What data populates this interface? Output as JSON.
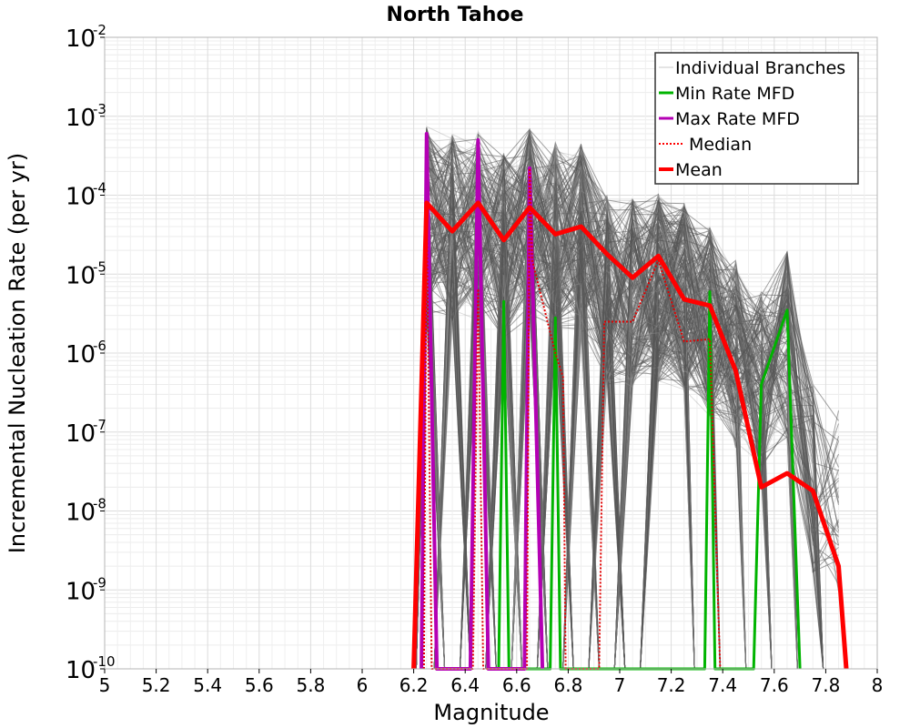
{
  "chart_data": {
    "type": "line",
    "title": "North Tahoe",
    "xlabel": "Magnitude",
    "ylabel": "Incremental Nucleation Rate (per yr)",
    "xlim": [
      5,
      8
    ],
    "ylim": [
      1e-10,
      0.01
    ],
    "yscale": "log",
    "grid": true,
    "legend_position": "top-right",
    "x_ticks": [
      "5",
      "5.2",
      "5.4",
      "5.6",
      "5.8",
      "6",
      "6.2",
      "6.4",
      "6.6",
      "6.8",
      "7",
      "7.2",
      "7.4",
      "7.6",
      "7.8",
      "8"
    ],
    "y_ticks": [
      {
        "base": "10",
        "exp": "-10"
      },
      {
        "base": "10",
        "exp": "-9"
      },
      {
        "base": "10",
        "exp": "-8"
      },
      {
        "base": "10",
        "exp": "-7"
      },
      {
        "base": "10",
        "exp": "-6"
      },
      {
        "base": "10",
        "exp": "-5"
      },
      {
        "base": "10",
        "exp": "-4"
      },
      {
        "base": "10",
        "exp": "-3"
      },
      {
        "base": "10",
        "exp": "-2"
      }
    ],
    "legend": [
      {
        "name": "Individual Branches",
        "color": "#c8c8c8",
        "style": "solid-thin"
      },
      {
        "name": "Min Rate MFD",
        "color": "#00b400",
        "style": "solid"
      },
      {
        "name": "Max Rate MFD",
        "color": "#b400b4",
        "style": "solid"
      },
      {
        "name": "Median",
        "color": "#ff0000",
        "style": "dotted"
      },
      {
        "name": "Mean",
        "color": "#ff0000",
        "style": "solid-thick"
      }
    ],
    "branch_envelope": {
      "x": [
        6.25,
        6.35,
        6.45,
        6.55,
        6.65,
        6.75,
        6.85,
        6.95,
        7.05,
        7.15,
        7.25,
        7.35,
        7.45,
        7.55,
        7.65,
        7.75,
        7.85
      ],
      "max": [
        0.00075,
        0.0006,
        0.00065,
        0.00035,
        0.0007,
        0.0005,
        0.00045,
        0.0001,
        9e-05,
        0.00011,
        8e-05,
        4e-05,
        1.5e-05,
        6e-06,
        2e-05,
        4e-07,
        2e-07
      ]
    },
    "series": [
      {
        "name": "Mean",
        "x": [
          6.2,
          6.25,
          6.35,
          6.45,
          6.55,
          6.65,
          6.75,
          6.85,
          6.95,
          7.05,
          7.15,
          7.25,
          7.35,
          7.45,
          7.55,
          7.65,
          7.75,
          7.85,
          7.88
        ],
        "values": [
          1e-10,
          8e-05,
          3.5e-05,
          8e-05,
          2.7e-05,
          7e-05,
          3.2e-05,
          4e-05,
          1.8e-05,
          9e-06,
          1.7e-05,
          4.8e-06,
          4e-06,
          6e-07,
          2e-08,
          3e-08,
          1.8e-08,
          2e-09,
          1e-10
        ]
      },
      {
        "name": "Median",
        "x": [
          6.24,
          6.25,
          6.27,
          6.43,
          6.45,
          6.47,
          6.64,
          6.65,
          6.66,
          6.75,
          6.78,
          6.79,
          6.92,
          6.94,
          7.05,
          7.15,
          7.25,
          7.35,
          7.39
        ],
        "values": [
          1e-10,
          8e-05,
          1e-10,
          1e-10,
          6.5e-06,
          1e-10,
          1e-10,
          0.00022,
          1.5e-05,
          1e-06,
          5e-07,
          1e-10,
          1e-10,
          2.5e-06,
          2.5e-06,
          1.5e-05,
          1.4e-06,
          1.5e-06,
          1e-10
        ]
      },
      {
        "name": "Min Rate MFD",
        "x": [
          6.53,
          6.55,
          6.57,
          6.73,
          6.75,
          6.77,
          7.33,
          7.35,
          7.37,
          7.52,
          7.55,
          7.65,
          7.7
        ],
        "values": [
          1e-10,
          4.5e-06,
          1e-10,
          1e-10,
          2.8e-06,
          1e-10,
          1e-10,
          6e-06,
          1e-10,
          1e-10,
          4e-07,
          3.5e-06,
          1e-10
        ]
      },
      {
        "name": "Max Rate MFD",
        "x": [
          6.23,
          6.25,
          6.29,
          6.42,
          6.45,
          6.49,
          6.63,
          6.65,
          6.7
        ],
        "values": [
          1e-10,
          0.0006,
          1e-10,
          1e-10,
          0.0005,
          1e-10,
          1e-10,
          0.00022,
          1e-10
        ]
      }
    ]
  }
}
